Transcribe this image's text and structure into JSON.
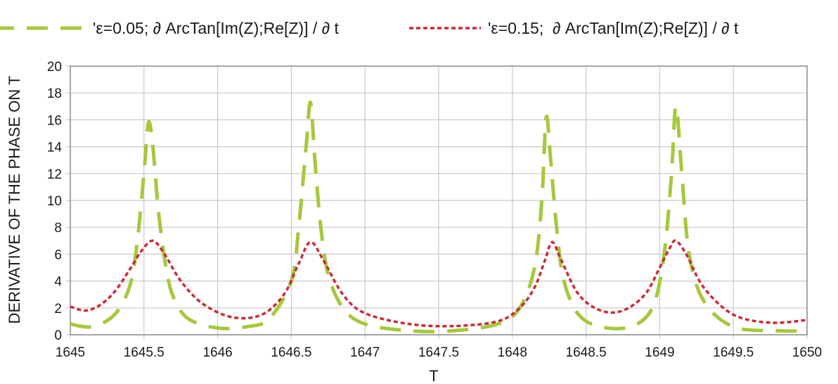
{
  "chart_data": {
    "type": "line",
    "title": "",
    "xlabel": "T",
    "ylabel": "DERIVATIVE OF THE PHASE ON T",
    "xlim": [
      1645,
      1650
    ],
    "ylim": [
      0,
      20
    ],
    "x_ticks": [
      "1645",
      "1645.5",
      "1646",
      "1646.5",
      "1647",
      "1647.5",
      "1648",
      "1648.5",
      "1649",
      "1649.5",
      "1650"
    ],
    "y_ticks": [
      "0",
      "2",
      "4",
      "6",
      "8",
      "10",
      "12",
      "14",
      "16",
      "18",
      "20"
    ],
    "grid": true,
    "legend_position": "top",
    "series": [
      {
        "name": "'ε=0.05; ∂ ArcTan[Im(Z);Re[Z)] / ∂ t",
        "color": "#a6c83c",
        "style": "long-dash",
        "x": [
          1645.0,
          1645.15,
          1645.3,
          1645.4,
          1645.45,
          1645.5,
          1645.53,
          1645.56,
          1645.6,
          1645.65,
          1645.7,
          1645.8,
          1646.0,
          1646.2,
          1646.35,
          1646.5,
          1646.55,
          1646.6,
          1646.63,
          1646.66,
          1646.7,
          1646.75,
          1646.85,
          1647.0,
          1647.3,
          1647.6,
          1647.9,
          1648.05,
          1648.15,
          1648.2,
          1648.23,
          1648.26,
          1648.3,
          1648.35,
          1648.45,
          1648.6,
          1648.8,
          1648.95,
          1649.03,
          1649.08,
          1649.11,
          1649.15,
          1649.2,
          1649.3,
          1649.5,
          1649.8,
          1650.0
        ],
        "y": [
          0.8,
          0.6,
          1.5,
          3.5,
          6.5,
          12,
          15.8,
          14,
          9,
          5,
          2.8,
          1.2,
          0.5,
          0.6,
          1.2,
          4,
          8,
          14,
          17.3,
          13,
          8,
          4.5,
          2,
          0.8,
          0.3,
          0.3,
          0.8,
          2,
          5,
          10,
          16.2,
          13,
          8,
          4,
          1.5,
          0.6,
          0.6,
          2,
          6,
          12,
          17,
          12,
          6,
          2.5,
          0.6,
          0.3,
          0.3
        ]
      },
      {
        "name": "'ε=0.15;  ∂ ArcTan[Im(Z);Re[Z)] / ∂ t",
        "color": "#cc2a36",
        "style": "dotted",
        "x": [
          1645.0,
          1645.1,
          1645.2,
          1645.3,
          1645.4,
          1645.48,
          1645.56,
          1645.64,
          1645.75,
          1645.9,
          1646.1,
          1646.3,
          1646.45,
          1646.55,
          1646.63,
          1646.72,
          1646.85,
          1647.0,
          1647.3,
          1647.6,
          1647.9,
          1648.05,
          1648.15,
          1648.22,
          1648.27,
          1648.33,
          1648.45,
          1648.6,
          1648.75,
          1648.9,
          1649.0,
          1649.07,
          1649.11,
          1649.18,
          1649.3,
          1649.5,
          1649.75,
          1650.0
        ],
        "y": [
          2.1,
          1.8,
          2.2,
          3.2,
          4.8,
          6.2,
          7.0,
          6.0,
          4.0,
          2.3,
          1.3,
          1.5,
          3.0,
          5.3,
          6.9,
          5.5,
          3.0,
          1.6,
          0.8,
          0.65,
          1.0,
          2.0,
          3.5,
          5.5,
          6.9,
          5.6,
          3.0,
          1.8,
          1.8,
          3.0,
          5.0,
          6.5,
          7.0,
          6.0,
          3.5,
          1.5,
          0.9,
          1.1
        ]
      }
    ]
  }
}
